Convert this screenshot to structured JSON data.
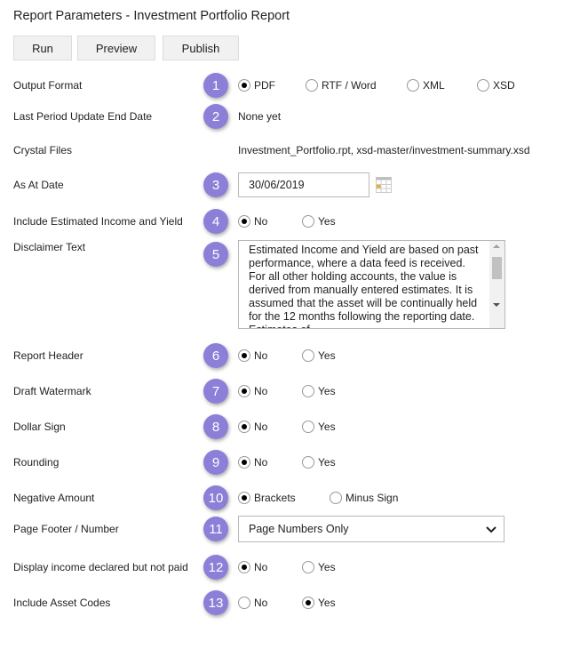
{
  "title": "Report Parameters - Investment Portfolio Report",
  "buttons": [
    {
      "label": "Run"
    },
    {
      "label": "Preview"
    },
    {
      "label": "Publish"
    }
  ],
  "accent": "#8b7fd8",
  "rows": [
    {
      "badge": "1",
      "label": "Output Format",
      "type": "radio",
      "options": [
        "PDF",
        "RTF / Word",
        "XML",
        "XSD"
      ],
      "selected": 0
    },
    {
      "badge": "2",
      "label": "Last Period Update End Date",
      "type": "text",
      "value": "None yet"
    },
    {
      "badge": "",
      "label": "Crystal Files",
      "type": "text",
      "value": "Investment_Portfolio.rpt, xsd-master/investment-summary.xsd"
    },
    {
      "badge": "3",
      "label": "As At Date",
      "type": "date",
      "value": "30/06/2019",
      "icon": "calendar-icon"
    },
    {
      "badge": "4",
      "label": "Include Estimated Income and Yield",
      "type": "radio",
      "options": [
        "No",
        "Yes"
      ],
      "selected": 0
    },
    {
      "badge": "5",
      "label": "Disclaimer Text",
      "type": "textarea",
      "value": "Estimated Income and Yield are based on past performance, where a data feed is received. For all other holding accounts, the value is derived from manually entered estimates. It is assumed that the asset will be continually held for the 12 months following the reporting date. Estimates of"
    },
    {
      "badge": "6",
      "label": "Report Header",
      "type": "radio",
      "options": [
        "No",
        "Yes"
      ],
      "selected": 0
    },
    {
      "badge": "7",
      "label": "Draft Watermark",
      "type": "radio",
      "options": [
        "No",
        "Yes"
      ],
      "selected": 0
    },
    {
      "badge": "8",
      "label": "Dollar Sign",
      "type": "radio",
      "options": [
        "No",
        "Yes"
      ],
      "selected": 0
    },
    {
      "badge": "9",
      "label": "Rounding",
      "type": "radio",
      "options": [
        "No",
        "Yes"
      ],
      "selected": 0
    },
    {
      "badge": "10",
      "label": "Negative Amount",
      "type": "radio",
      "options": [
        "Brackets",
        "Minus Sign"
      ],
      "selected": 0
    },
    {
      "badge": "11",
      "label": "Page Footer / Number",
      "type": "select",
      "value": "Page Numbers Only",
      "icon": "chevron-down-icon"
    },
    {
      "badge": "12",
      "label": "Display income declared but not paid",
      "type": "radio",
      "options": [
        "No",
        "Yes"
      ],
      "selected": 0
    },
    {
      "badge": "13",
      "label": "Include Asset Codes",
      "type": "radio",
      "options": [
        "No",
        "Yes"
      ],
      "selected": 1
    }
  ]
}
